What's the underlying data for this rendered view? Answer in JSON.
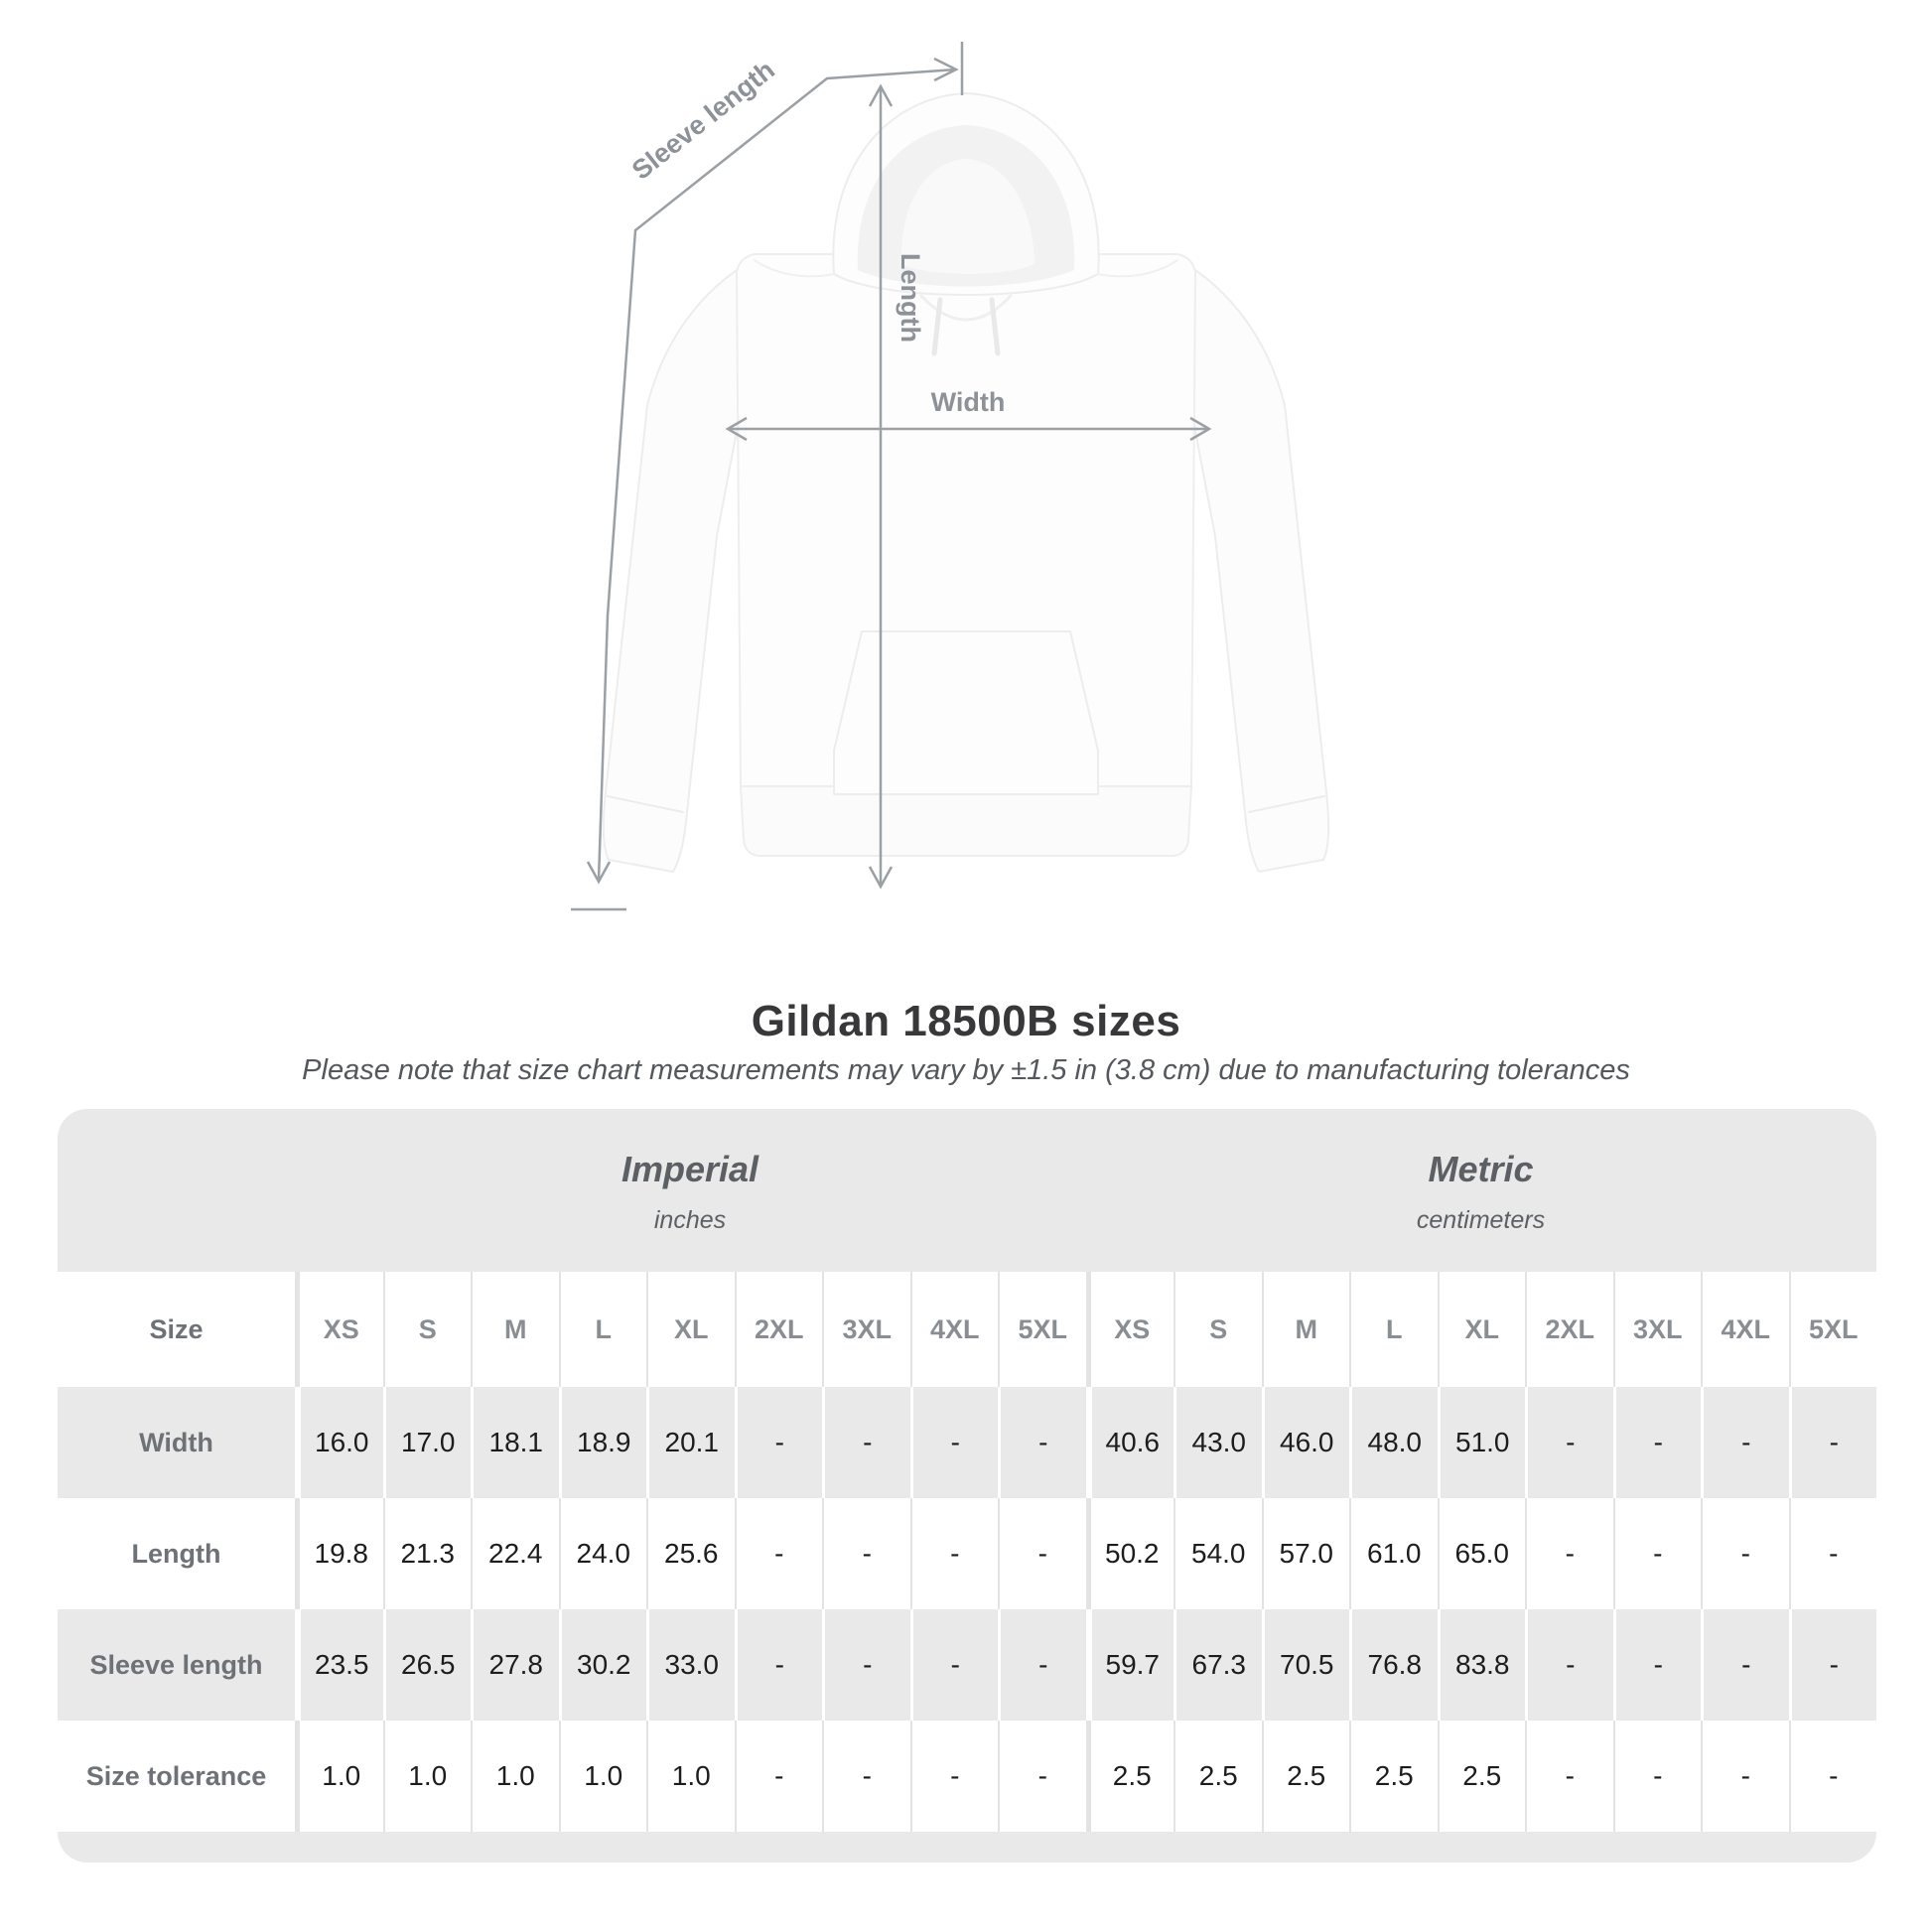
{
  "diagram": {
    "sleeve_label": "Sleeve length",
    "length_label": "Length",
    "width_label": "Width"
  },
  "title": "Gildan 18500B sizes",
  "subtitle": "Please note that size chart measurements may vary by ±1.5 in (3.8 cm) due to manufacturing tolerances",
  "table": {
    "unit_headers": [
      {
        "name": "Imperial",
        "unit": "inches"
      },
      {
        "name": "Metric",
        "unit": "centimeters"
      }
    ],
    "size_header": {
      "label": "Size",
      "imperial": [
        "XS",
        "S",
        "M",
        "L",
        "XL",
        "2XL",
        "3XL",
        "4XL",
        "5XL"
      ],
      "metric": [
        "XS",
        "S",
        "M",
        "L",
        "XL",
        "2XL",
        "3XL",
        "4XL",
        "5XL"
      ]
    },
    "rows": [
      {
        "label": "Width",
        "imperial": [
          "16.0",
          "17.0",
          "18.1",
          "18.9",
          "20.1",
          "-",
          "-",
          "-",
          "-"
        ],
        "metric": [
          "40.6",
          "43.0",
          "46.0",
          "48.0",
          "51.0",
          "-",
          "-",
          "-",
          "-"
        ]
      },
      {
        "label": "Length",
        "imperial": [
          "19.8",
          "21.3",
          "22.4",
          "24.0",
          "25.6",
          "-",
          "-",
          "-",
          "-"
        ],
        "metric": [
          "50.2",
          "54.0",
          "57.0",
          "61.0",
          "65.0",
          "-",
          "-",
          "-",
          "-"
        ]
      },
      {
        "label": "Sleeve length",
        "imperial": [
          "23.5",
          "26.5",
          "27.8",
          "30.2",
          "33.0",
          "-",
          "-",
          "-",
          "-"
        ],
        "metric": [
          "59.7",
          "67.3",
          "70.5",
          "76.8",
          "83.8",
          "-",
          "-",
          "-",
          "-"
        ]
      },
      {
        "label": "Size tolerance",
        "imperial": [
          "1.0",
          "1.0",
          "1.0",
          "1.0",
          "1.0",
          "-",
          "-",
          "-",
          "-"
        ],
        "metric": [
          "2.5",
          "2.5",
          "2.5",
          "2.5",
          "2.5",
          "-",
          "-",
          "-",
          "-"
        ]
      }
    ]
  },
  "colors": {
    "panel_gray": "#e9e9e9",
    "separator_on_white": "#e3e3e3",
    "measure_line": "#9ba0a5",
    "label_gray": "#6e7277",
    "value_dark": "#1d1d1f"
  }
}
